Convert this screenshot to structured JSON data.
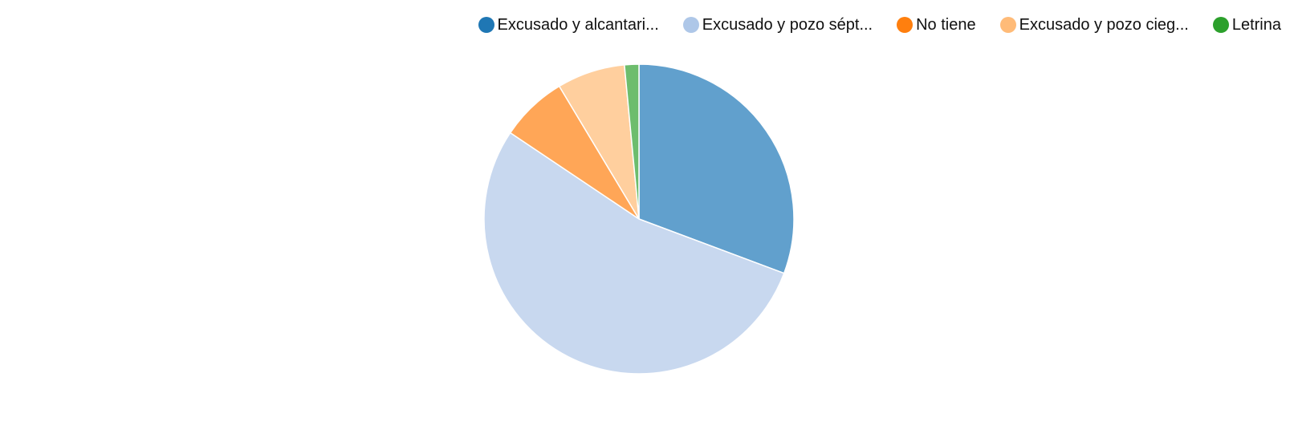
{
  "chart_data": {
    "type": "pie",
    "title": "",
    "slices": [
      {
        "label": "Excusado y alcantari...",
        "value": 30.7,
        "color": "#1f77b4",
        "fill": "#61a0cd"
      },
      {
        "label": "Excusado y pozo sépt...",
        "value": 53.7,
        "color": "#aec7e8",
        "fill": "#c8d8ef"
      },
      {
        "label": "No tiene",
        "value": 7.0,
        "color": "#ff7f0e",
        "fill": "#ffa657"
      },
      {
        "label": "Excusado y pozo cieg...",
        "value": 7.1,
        "color": "#ffbb78",
        "fill": "#ffcf9e"
      },
      {
        "label": "Letrina",
        "value": 1.5,
        "color": "#2ca02c",
        "fill": "#6dbd6d"
      }
    ],
    "start_angle": "12 o'clock",
    "direction": "clockwise",
    "legend_position": "top-right"
  }
}
